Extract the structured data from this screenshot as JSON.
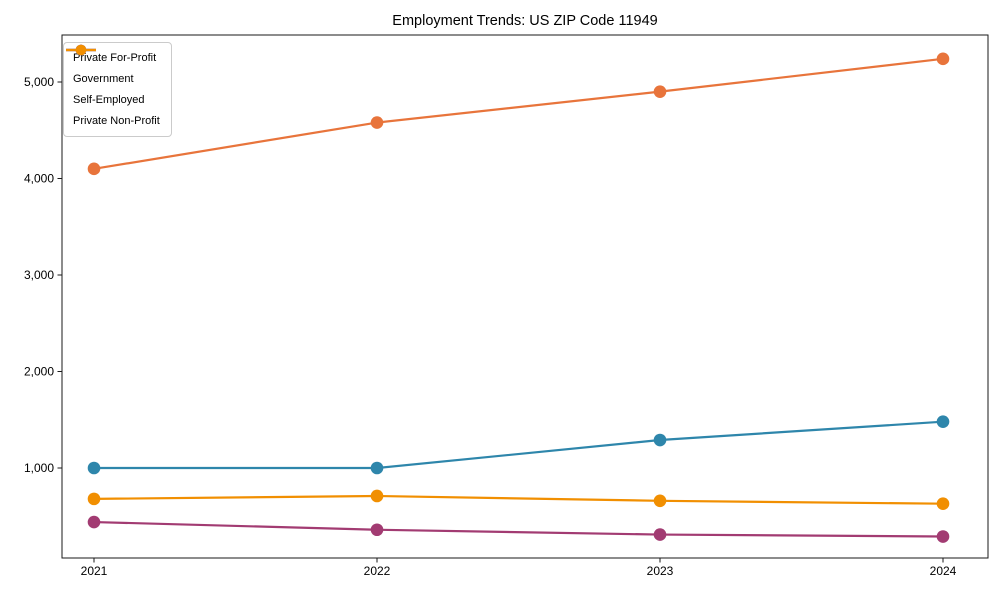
{
  "figure": {
    "background": "#ffffff"
  },
  "chart_data": {
    "type": "line",
    "title": "Employment Trends: US ZIP Code 11949",
    "x": [
      "2021",
      "2022",
      "2023",
      "2024"
    ],
    "series": [
      {
        "name": "Private For-Profit",
        "color": "#e8743b",
        "values": [
          4100,
          4580,
          4900,
          5240
        ]
      },
      {
        "name": "Government",
        "color": "#2e86ab",
        "values": [
          1000,
          1000,
          1290,
          1480
        ]
      },
      {
        "name": "Self-Employed",
        "color": "#a23b72",
        "values": [
          440,
          360,
          310,
          290
        ]
      },
      {
        "name": "Private Non-Profit",
        "color": "#f18f01",
        "values": [
          680,
          710,
          660,
          630
        ]
      }
    ],
    "xlabel": "",
    "ylabel": "",
    "ylim": [
      60,
      5490
    ],
    "yticks": [
      1000,
      2000,
      3000,
      4000,
      5000
    ],
    "ytick_labels": [
      "1,000",
      "2,000",
      "3,000",
      "4,000",
      "5,000"
    ],
    "xtick_labels": [
      "2021",
      "2022",
      "2023",
      "2024"
    ],
    "grid": false,
    "legend_position": "upper-left",
    "marker": "circle",
    "axis_color": "#1a1a1a"
  }
}
